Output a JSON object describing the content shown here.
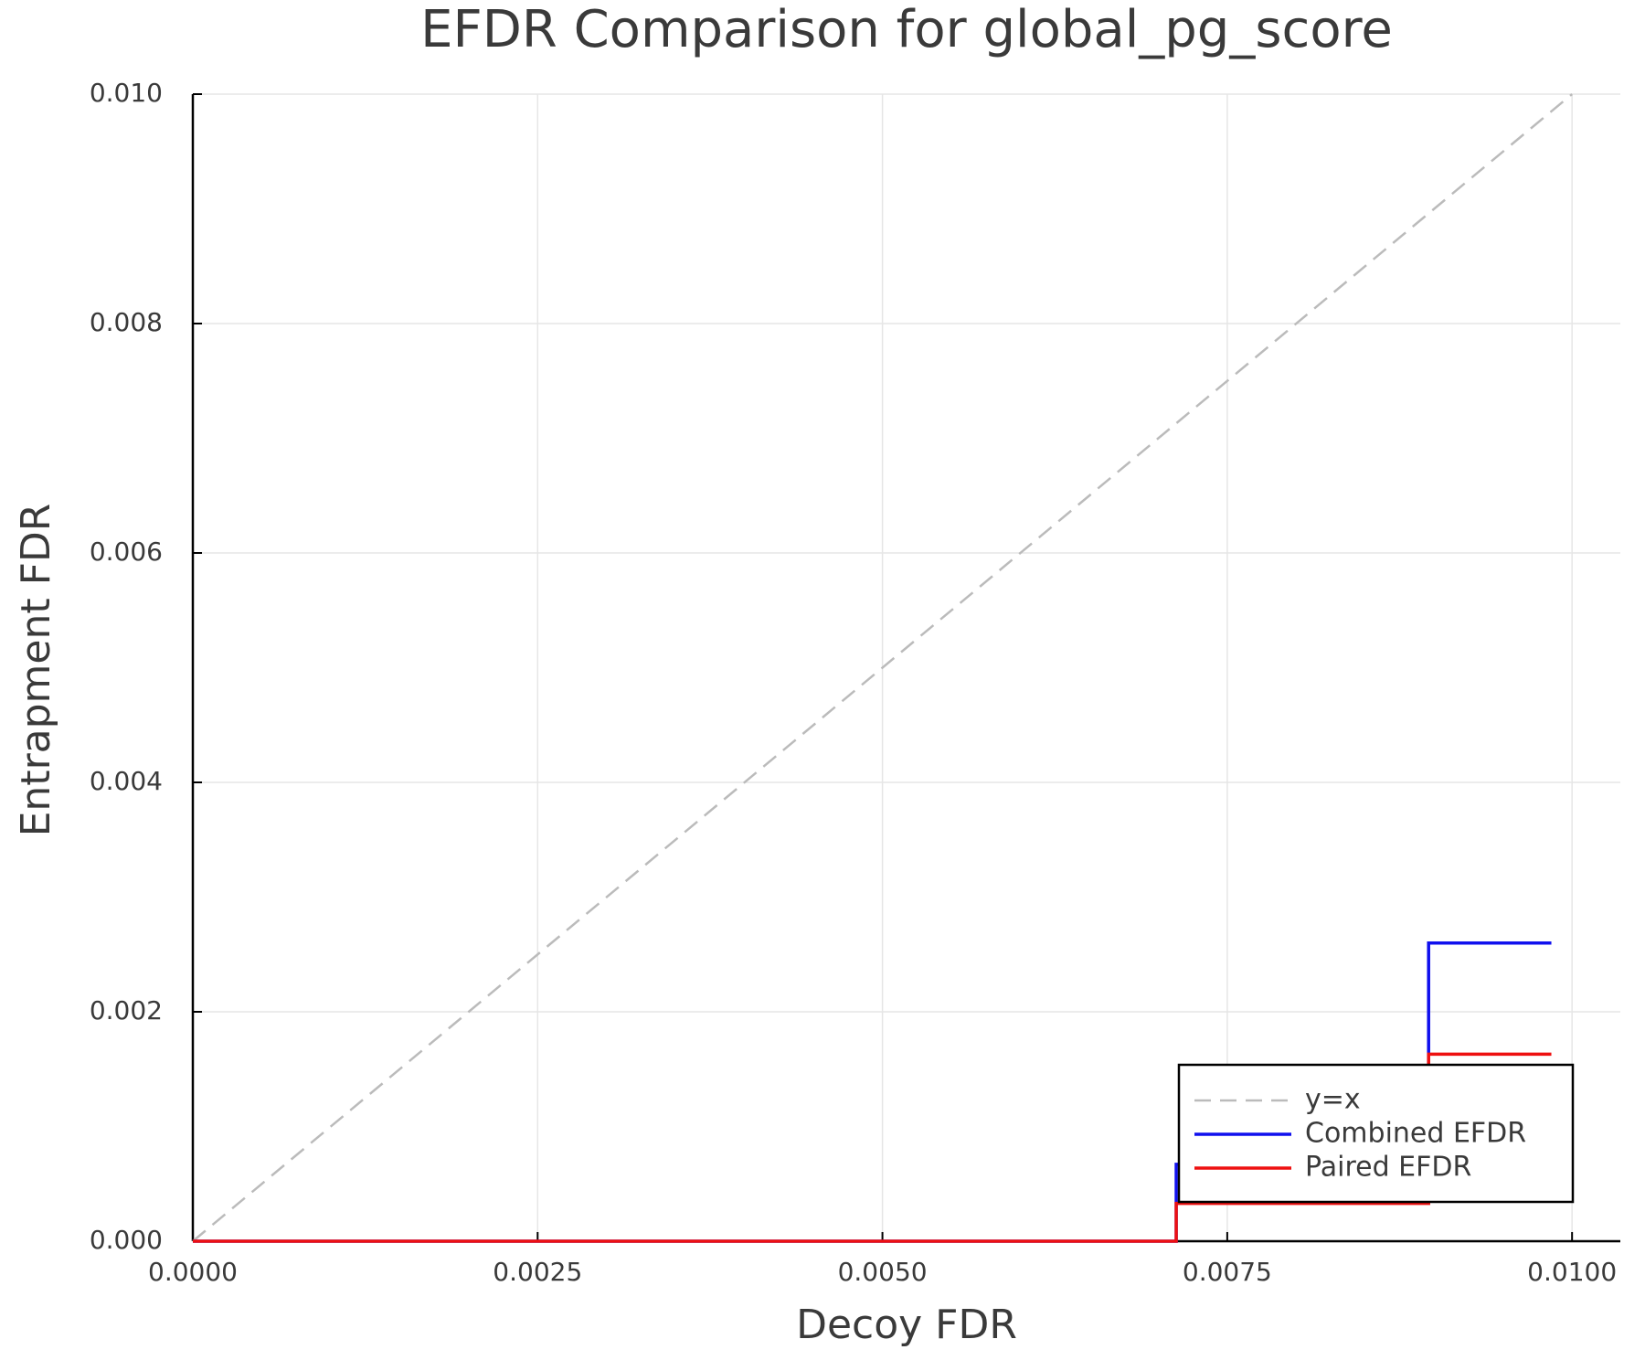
{
  "chart_data": {
    "type": "step",
    "title": "EFDR Comparison for global_pg_score",
    "x_label": "Decoy FDR",
    "y_label": "Entrapment FDR",
    "xlim": [
      0,
      0.01035
    ],
    "ylim": [
      0,
      0.01
    ],
    "xticks": [
      {
        "value": 0,
        "label": "0.0000"
      },
      {
        "value": 0.0025,
        "label": "0.0025"
      },
      {
        "value": 0.005,
        "label": "0.0050"
      },
      {
        "value": 0.0075,
        "label": "0.0075"
      },
      {
        "value": 0.01,
        "label": "0.0100"
      }
    ],
    "yticks": [
      {
        "value": 0,
        "label": "0.000"
      },
      {
        "value": 0.002,
        "label": "0.002"
      },
      {
        "value": 0.004,
        "label": "0.004"
      },
      {
        "value": 0.006,
        "label": "0.006"
      },
      {
        "value": 0.008,
        "label": "0.008"
      },
      {
        "value": 0.01,
        "label": "0.010"
      }
    ],
    "grid": true,
    "legend_position": "lower right",
    "series": [
      {
        "name": "y=x",
        "color": "#bbbbbb",
        "dashed": true,
        "step": false,
        "x": [
          0,
          0.01
        ],
        "values": [
          0,
          0.01
        ]
      },
      {
        "name": "Combined EFDR",
        "color": "#1010ee",
        "dashed": false,
        "step": true,
        "x": [
          0,
          0.00713,
          0.00896,
          0.00985
        ],
        "values": [
          0,
          0.00067,
          0.0026,
          0.0026
        ]
      },
      {
        "name": "Paired EFDR",
        "color": "#ee1010",
        "dashed": false,
        "step": true,
        "x": [
          0,
          0.00713,
          0.00896,
          0.00985
        ],
        "values": [
          0,
          0.00033,
          0.00163,
          0.00163
        ]
      }
    ]
  }
}
